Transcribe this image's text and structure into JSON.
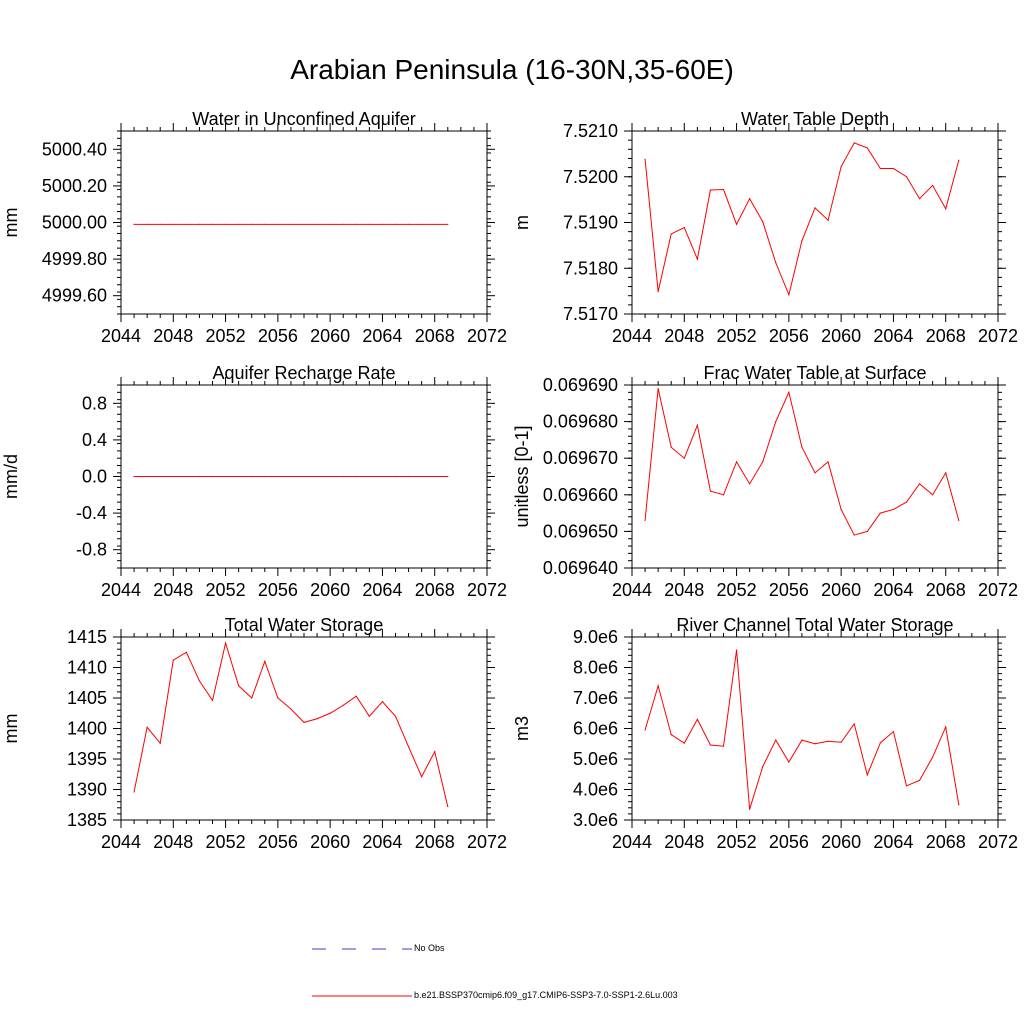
{
  "page": {
    "title": "Arabian Peninsula (16-30N,35-60E)"
  },
  "colors": {
    "model_line": "#ff0000",
    "obs_line": "#3c3cc8",
    "axis": "#000000"
  },
  "legend": {
    "obs_label": "No Obs",
    "model_label": "b.e21.BSSP370cmip6.f09_g17.CMIP6-SSP3-7.0-SSP1-2.6Lu.003"
  },
  "chart_data": [
    {
      "type": "line",
      "title": "Water in Unconfined Aquifer",
      "ylabel": "mm",
      "xlim": [
        2044,
        2072
      ],
      "ylim": [
        4999.5,
        5000.5
      ],
      "xticks": [
        2044,
        2048,
        2052,
        2056,
        2060,
        2064,
        2068,
        2072
      ],
      "yticks": [
        4999.6,
        4999.8,
        5000.0,
        5000.2,
        5000.4
      ],
      "ytick_labels": [
        "4999.60",
        "4999.80",
        "5000.00",
        "5000.20",
        "5000.40"
      ],
      "grid": false,
      "series": [
        {
          "x": [
            2045,
            2046,
            2047,
            2048,
            2049,
            2050,
            2051,
            2052,
            2053,
            2054,
            2055,
            2056,
            2057,
            2058,
            2059,
            2060,
            2061,
            2062,
            2063,
            2064,
            2065,
            2066,
            2067,
            2068,
            2069
          ],
          "values": [
            4999.99,
            4999.99,
            4999.99,
            4999.99,
            4999.99,
            4999.99,
            4999.99,
            4999.99,
            4999.99,
            4999.99,
            4999.99,
            4999.99,
            4999.99,
            4999.99,
            4999.99,
            4999.99,
            4999.99,
            4999.99,
            4999.99,
            4999.99,
            4999.99,
            4999.99,
            4999.99,
            4999.99,
            4999.99
          ]
        }
      ]
    },
    {
      "type": "line",
      "title": "Water Table Depth",
      "ylabel": "m",
      "xlim": [
        2044,
        2072
      ],
      "ylim": [
        7.517,
        7.521
      ],
      "xticks": [
        2044,
        2048,
        2052,
        2056,
        2060,
        2064,
        2068,
        2072
      ],
      "yticks": [
        7.517,
        7.518,
        7.519,
        7.52,
        7.521
      ],
      "ytick_labels": [
        "7.5170",
        "7.5180",
        "7.5190",
        "7.5200",
        "7.5210"
      ],
      "grid": false,
      "series": [
        {
          "x": [
            2045,
            2046,
            2047,
            2048,
            2049,
            2050,
            2051,
            2052,
            2053,
            2054,
            2055,
            2056,
            2057,
            2058,
            2059,
            2060,
            2061,
            2062,
            2063,
            2064,
            2065,
            2066,
            2067,
            2068,
            2069
          ],
          "values": [
            7.52038,
            7.51749,
            7.51875,
            7.51889,
            7.5182,
            7.51971,
            7.51972,
            7.51896,
            7.51952,
            7.51902,
            7.51812,
            7.51742,
            7.5186,
            7.51932,
            7.51905,
            7.52022,
            7.52074,
            7.52063,
            7.52018,
            7.52018,
            7.52,
            7.51952,
            7.51981,
            7.5193,
            7.52036
          ]
        }
      ]
    },
    {
      "type": "line",
      "title": "Aquifer Recharge Rate",
      "ylabel": "mm/d",
      "xlim": [
        2044,
        2072
      ],
      "ylim": [
        -1.0,
        1.0
      ],
      "xticks": [
        2044,
        2048,
        2052,
        2056,
        2060,
        2064,
        2068,
        2072
      ],
      "yticks": [
        -0.8,
        -0.4,
        0.0,
        0.4,
        0.8
      ],
      "ytick_labels": [
        "-0.8",
        "-0.4",
        "0.0",
        "0.4",
        "0.8"
      ],
      "grid": false,
      "series": [
        {
          "x": [
            2045,
            2046,
            2047,
            2048,
            2049,
            2050,
            2051,
            2052,
            2053,
            2054,
            2055,
            2056,
            2057,
            2058,
            2059,
            2060,
            2061,
            2062,
            2063,
            2064,
            2065,
            2066,
            2067,
            2068,
            2069
          ],
          "values": [
            0,
            0,
            0,
            0,
            0,
            0,
            0,
            0,
            0,
            0,
            0,
            0,
            0,
            0,
            0,
            0,
            0,
            0,
            0,
            0,
            0,
            0,
            0,
            0,
            0
          ]
        }
      ]
    },
    {
      "type": "line",
      "title": "Frac Water Table at Surface",
      "ylabel": "unitless [0-1]",
      "xlim": [
        2044,
        2072
      ],
      "ylim": [
        0.06964,
        0.06969
      ],
      "xticks": [
        2044,
        2048,
        2052,
        2056,
        2060,
        2064,
        2068,
        2072
      ],
      "yticks": [
        0.06964,
        0.06965,
        0.06966,
        0.06967,
        0.06968,
        0.06969
      ],
      "ytick_labels": [
        "0.069640",
        "0.069650",
        "0.069660",
        "0.069670",
        "0.069680",
        "0.069690"
      ],
      "grid": false,
      "series": [
        {
          "x": [
            2045,
            2046,
            2047,
            2048,
            2049,
            2050,
            2051,
            2052,
            2053,
            2054,
            2055,
            2056,
            2057,
            2058,
            2059,
            2060,
            2061,
            2062,
            2063,
            2064,
            2065,
            2066,
            2067,
            2068,
            2069
          ],
          "values": [
            0.069653,
            0.069689,
            0.069673,
            0.06967,
            0.069679,
            0.069661,
            0.06966,
            0.069669,
            0.069663,
            0.069669,
            0.06968,
            0.069688,
            0.069673,
            0.069666,
            0.069669,
            0.069656,
            0.069649,
            0.06965,
            0.069655,
            0.069656,
            0.069658,
            0.069663,
            0.06966,
            0.069666,
            0.069653
          ]
        }
      ]
    },
    {
      "type": "line",
      "title": "Total Water Storage",
      "ylabel": "mm",
      "xlim": [
        2044,
        2072
      ],
      "ylim": [
        1385,
        1415
      ],
      "xticks": [
        2044,
        2048,
        2052,
        2056,
        2060,
        2064,
        2068,
        2072
      ],
      "yticks": [
        1385,
        1390,
        1395,
        1400,
        1405,
        1410,
        1415
      ],
      "ytick_labels": [
        "1385",
        "1390",
        "1395",
        "1400",
        "1405",
        "1410",
        "1415"
      ],
      "grid": false,
      "series": [
        {
          "x": [
            2045,
            2046,
            2047,
            2048,
            2049,
            2050,
            2051,
            2052,
            2053,
            2054,
            2055,
            2056,
            2057,
            2058,
            2059,
            2060,
            2061,
            2062,
            2063,
            2064,
            2065,
            2066,
            2067,
            2068,
            2069
          ],
          "values": [
            1389.6,
            1400.2,
            1397.6,
            1411.2,
            1412.5,
            1407.8,
            1404.6,
            1414.0,
            1407.0,
            1405.0,
            1411.0,
            1405.0,
            1403.2,
            1401.0,
            1401.6,
            1402.5,
            1403.8,
            1405.3,
            1402.0,
            1404.4,
            1402.0,
            1397.0,
            1392.1,
            1396.2,
            1387.2
          ]
        }
      ]
    },
    {
      "type": "line",
      "title": "River Channel Total Water Storage",
      "ylabel": "m3",
      "xlim": [
        2044,
        2072
      ],
      "ylim": [
        3000000,
        9000000
      ],
      "xticks": [
        2044,
        2048,
        2052,
        2056,
        2060,
        2064,
        2068,
        2072
      ],
      "yticks": [
        3000000,
        4000000,
        5000000,
        6000000,
        7000000,
        8000000,
        9000000
      ],
      "ytick_labels": [
        "3.0e6",
        "4.0e6",
        "5.0e6",
        "6.0e6",
        "7.0e6",
        "8.0e6",
        "9.0e6"
      ],
      "grid": false,
      "series": [
        {
          "x": [
            2045,
            2046,
            2047,
            2048,
            2049,
            2050,
            2051,
            2052,
            2053,
            2054,
            2055,
            2056,
            2057,
            2058,
            2059,
            2060,
            2061,
            2062,
            2063,
            2064,
            2065,
            2066,
            2067,
            2068,
            2069
          ],
          "values": [
            5950000,
            7400000,
            5800000,
            5520000,
            6300000,
            5460000,
            5420000,
            8570000,
            3350000,
            4750000,
            5620000,
            4900000,
            5620000,
            5500000,
            5580000,
            5550000,
            6150000,
            4480000,
            5530000,
            5900000,
            4120000,
            4300000,
            5060000,
            6050000,
            3500000
          ]
        }
      ]
    }
  ]
}
